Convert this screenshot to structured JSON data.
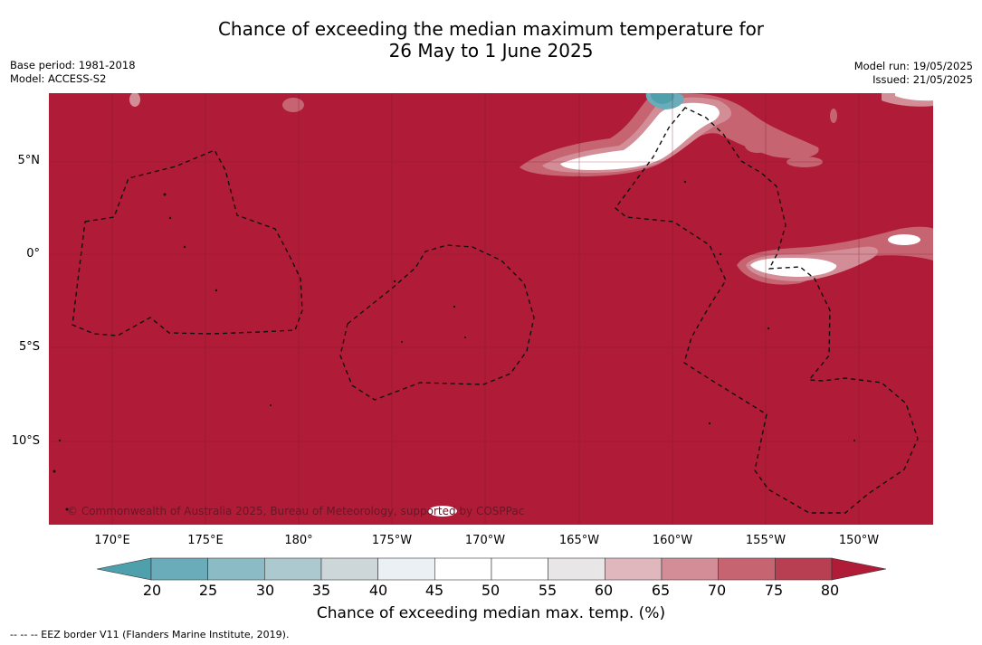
{
  "title": {
    "line1": "Chance of exceeding the median maximum temperature for",
    "line2": "26 May to 1 June 2025"
  },
  "meta_left": {
    "base_period": "Base period: 1981-2018",
    "model": "Model: ACCESS-S2"
  },
  "meta_right": {
    "model_run": "Model run: 19/05/2025",
    "issued": "Issued: 21/05/2025"
  },
  "map": {
    "lat_labels": [
      "5°N",
      "0°",
      "5°S",
      "10°S"
    ],
    "lon_labels": [
      "170°E",
      "175°E",
      "180°",
      "175°W",
      "170°W",
      "165°W",
      "160°W",
      "155°W",
      "150°W"
    ],
    "copyright": "© Commonwealth of Australia 2025, Bureau of Meteorology, supported by COSPPac",
    "background_color": "#b01c38",
    "border_style": "dashed"
  },
  "colorbar": {
    "ticks": [
      "20",
      "25",
      "30",
      "35",
      "40",
      "45",
      "50",
      "55",
      "60",
      "65",
      "70",
      "75",
      "80"
    ],
    "colors": [
      "#4fa0ad",
      "#6aacb9",
      "#8bbcc6",
      "#abc9cf",
      "#cdd6d9",
      "#eaf0f3",
      "#ffffff",
      "#ffffff",
      "#e9e6e7",
      "#dfb7bd",
      "#d38d96",
      "#c66472",
      "#b83e51",
      "#b01c38"
    ],
    "label": "Chance of exceeding median max. temp. (%)"
  },
  "footer": "--  --  -- EEZ border V11 (Flanders Marine Institute, 2019)."
}
